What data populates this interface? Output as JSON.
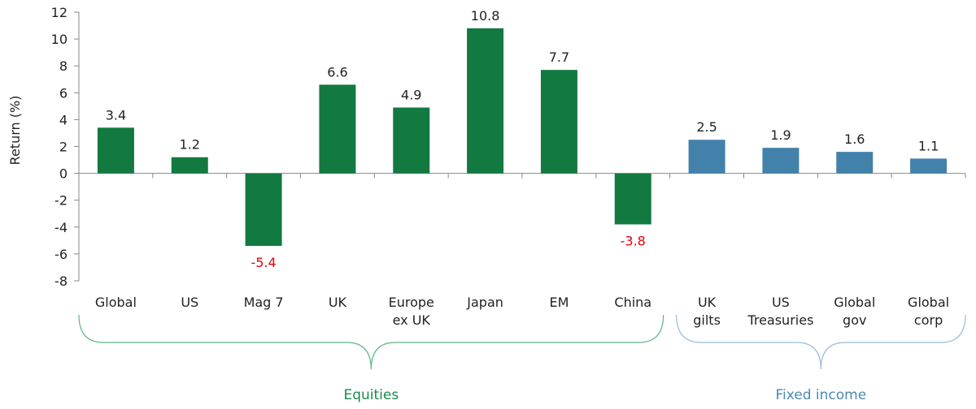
{
  "chart_data": {
    "type": "bar",
    "ylabel": "Return (%)",
    "xlabel": "",
    "ylim": [
      -8,
      12
    ],
    "yticks": [
      -8,
      -6,
      -4,
      -2,
      0,
      2,
      4,
      6,
      8,
      10,
      12
    ],
    "grid": false,
    "categories": [
      [
        "Global"
      ],
      [
        "US"
      ],
      [
        "Mag 7"
      ],
      [
        "UK"
      ],
      [
        "Europe",
        "ex UK"
      ],
      [
        "Japan"
      ],
      [
        "EM"
      ],
      [
        "China"
      ],
      [
        "UK",
        "gilts"
      ],
      [
        "US",
        "Treasuries"
      ],
      [
        "Global",
        "gov"
      ],
      [
        "Global",
        "corp"
      ]
    ],
    "values": [
      3.4,
      1.2,
      -5.4,
      6.6,
      4.9,
      10.8,
      7.7,
      -3.8,
      2.5,
      1.9,
      1.6,
      1.1
    ],
    "data_labels": [
      "3.4",
      "1.2",
      "-5.4",
      "6.6",
      "4.9",
      "10.8",
      "7.7",
      "-3.8",
      "2.5",
      "1.9",
      "1.6",
      "1.1"
    ],
    "groups": [
      {
        "label": "Equities",
        "from": 0,
        "to": 7,
        "color": "#127a40",
        "brace_color": "#5fb383",
        "label_color": "#1a8a4a"
      },
      {
        "label": "Fixed income",
        "from": 8,
        "to": 11,
        "color": "#4281aa",
        "brace_color": "#93bcd9",
        "label_color": "#4a8ab8"
      }
    ],
    "negative_label_color": "#e8000b",
    "positive_label_color": "#222222"
  }
}
